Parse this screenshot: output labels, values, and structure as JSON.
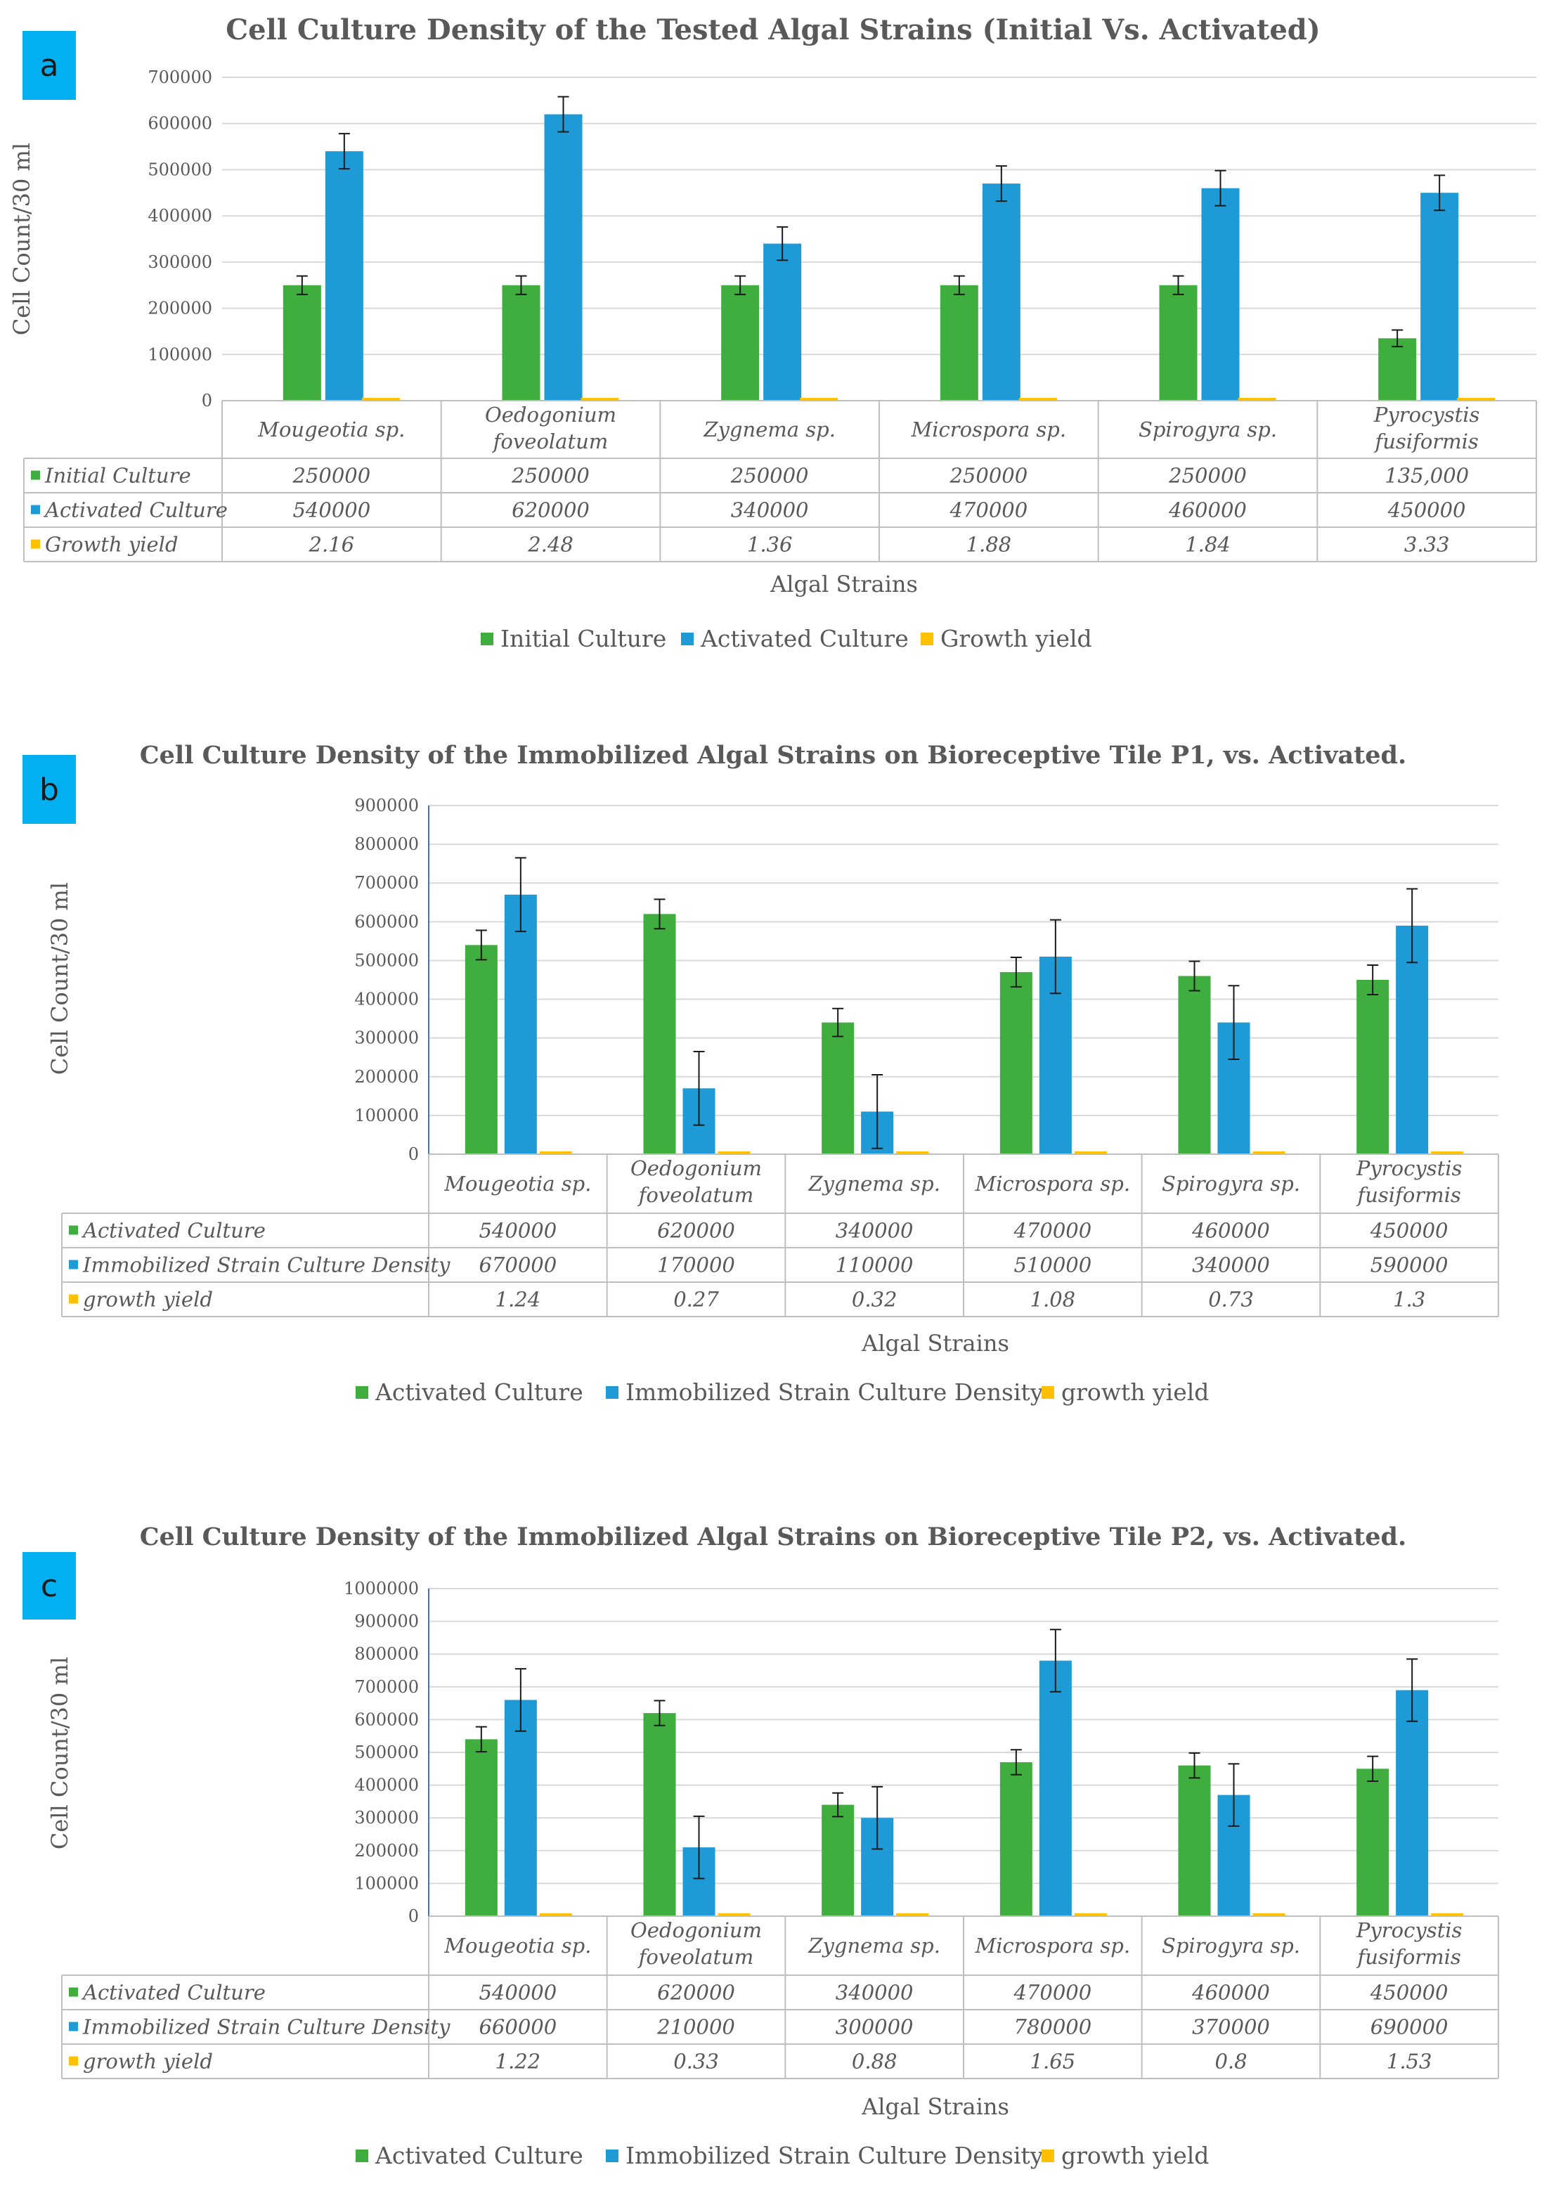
{
  "figure": {
    "colors": {
      "green": "#3fae3f",
      "blue": "#1e9ad6",
      "yellow": "#ffc000",
      "badge": "#00b0f0"
    }
  },
  "chart_data": [
    {
      "panel_letter": "a",
      "type": "bar",
      "title": "Cell Culture Density of the Tested Algal Strains (Initial Vs. Activated)",
      "xlabel": "Algal Strains",
      "ylabel": "Cell Count/30 ml",
      "ylim": [
        0,
        700000
      ],
      "ytick_step": 100000,
      "yticks": [
        "0",
        "100000",
        "200000",
        "300000",
        "400000",
        "500000",
        "600000",
        "700000"
      ],
      "categories": [
        [
          "Mougeotia sp."
        ],
        [
          "Oedogonium",
          "foveolatum"
        ],
        [
          "Zygnema sp."
        ],
        [
          "Microspora sp."
        ],
        [
          "Spirogyra sp."
        ],
        [
          "Pyrocystis",
          "fusiformis"
        ]
      ],
      "series": [
        {
          "name": "Initial Culture",
          "color": "#3fae3f",
          "values": [
            250000,
            250000,
            250000,
            250000,
            250000,
            135000
          ],
          "labels": [
            "250000",
            "250000",
            "250000",
            "250000",
            "250000",
            "135,000"
          ],
          "errors": [
            20000,
            20000,
            20000,
            20000,
            20000,
            18000
          ]
        },
        {
          "name": "Activated Culture",
          "color": "#1e9ad6",
          "values": [
            540000,
            620000,
            340000,
            470000,
            460000,
            450000
          ],
          "labels": [
            "540000",
            "620000",
            "340000",
            "470000",
            "460000",
            "450000"
          ],
          "errors": [
            38000,
            38000,
            36000,
            38000,
            38000,
            38000
          ]
        },
        {
          "name": "Growth yield",
          "color": "#ffc000",
          "values": [
            2.16,
            2.48,
            1.36,
            1.88,
            1.84,
            3.33
          ],
          "labels": [
            "2.16",
            "2.48",
            "1.36",
            "1.88",
            "1.84",
            "3.33"
          ],
          "errors": null
        }
      ]
    },
    {
      "panel_letter": "b",
      "type": "bar",
      "title": "Cell Culture  Density of the Immobilized  Algal Strains on Bioreceptive Tile P1, vs. Activated.",
      "xlabel": "Algal Strains",
      "ylabel": "Cell Count/30 ml",
      "ylim": [
        0,
        900000
      ],
      "ytick_step": 100000,
      "yticks": [
        "0",
        "100000",
        "200000",
        "300000",
        "400000",
        "500000",
        "600000",
        "700000",
        "800000",
        "900000"
      ],
      "categories": [
        [
          "Mougeotia sp."
        ],
        [
          "Oedogonium",
          "foveolatum"
        ],
        [
          "Zygnema sp."
        ],
        [
          "Microspora sp."
        ],
        [
          "Spirogyra sp."
        ],
        [
          "Pyrocystis",
          "fusiformis"
        ]
      ],
      "series": [
        {
          "name": "Activated Culture",
          "color": "#3fae3f",
          "values": [
            540000,
            620000,
            340000,
            470000,
            460000,
            450000
          ],
          "labels": [
            "540000",
            "620000",
            "340000",
            "470000",
            "460000",
            "450000"
          ],
          "errors": [
            38000,
            38000,
            36000,
            38000,
            38000,
            38000
          ]
        },
        {
          "name": "Immobilized Strain Culture Density",
          "color": "#1e9ad6",
          "values": [
            670000,
            170000,
            110000,
            510000,
            340000,
            590000
          ],
          "labels": [
            "670000",
            "170000",
            "110000",
            "510000",
            "340000",
            "590000"
          ],
          "errors": [
            95000,
            95000,
            95000,
            95000,
            95000,
            95000
          ]
        },
        {
          "name": "growth yield",
          "color": "#ffc000",
          "values": [
            1.24,
            0.27,
            0.32,
            1.08,
            0.73,
            1.3
          ],
          "labels": [
            "1.24",
            "0.27",
            "0.32",
            "1.08",
            "0.73",
            "1.3"
          ],
          "errors": null
        }
      ]
    },
    {
      "panel_letter": "c",
      "type": "bar",
      "title": "Cell Culture  Density of the Immobilized  Algal Strains on Bioreceptive Tile P2, vs. Activated.",
      "xlabel": "Algal Strains",
      "ylabel": "Cell Count/30 ml",
      "ylim": [
        0,
        1000000
      ],
      "ytick_step": 100000,
      "yticks": [
        "0",
        "100000",
        "200000",
        "300000",
        "400000",
        "500000",
        "600000",
        "700000",
        "800000",
        "900000",
        "1000000"
      ],
      "categories": [
        [
          "Mougeotia sp."
        ],
        [
          "Oedogonium",
          "foveolatum"
        ],
        [
          "Zygnema sp."
        ],
        [
          "Microspora sp."
        ],
        [
          "Spirogyra sp."
        ],
        [
          "Pyrocystis",
          "fusiformis"
        ]
      ],
      "series": [
        {
          "name": "Activated Culture",
          "color": "#3fae3f",
          "values": [
            540000,
            620000,
            340000,
            470000,
            460000,
            450000
          ],
          "labels": [
            "540000",
            "620000",
            "340000",
            "470000",
            "460000",
            "450000"
          ],
          "errors": [
            38000,
            38000,
            36000,
            38000,
            38000,
            38000
          ]
        },
        {
          "name": "Immobilized Strain Culture Density",
          "color": "#1e9ad6",
          "values": [
            660000,
            210000,
            300000,
            780000,
            370000,
            690000
          ],
          "labels": [
            "660000",
            "210000",
            "300000",
            "780000",
            "370000",
            "690000"
          ],
          "errors": [
            95000,
            95000,
            95000,
            95000,
            95000,
            95000
          ]
        },
        {
          "name": "growth yield",
          "color": "#ffc000",
          "values": [
            1.22,
            0.33,
            0.88,
            1.65,
            0.8,
            1.53
          ],
          "labels": [
            "1.22",
            "0.33",
            "0.88",
            "1.65",
            "0.8",
            "1.53"
          ],
          "errors": null
        }
      ]
    }
  ]
}
